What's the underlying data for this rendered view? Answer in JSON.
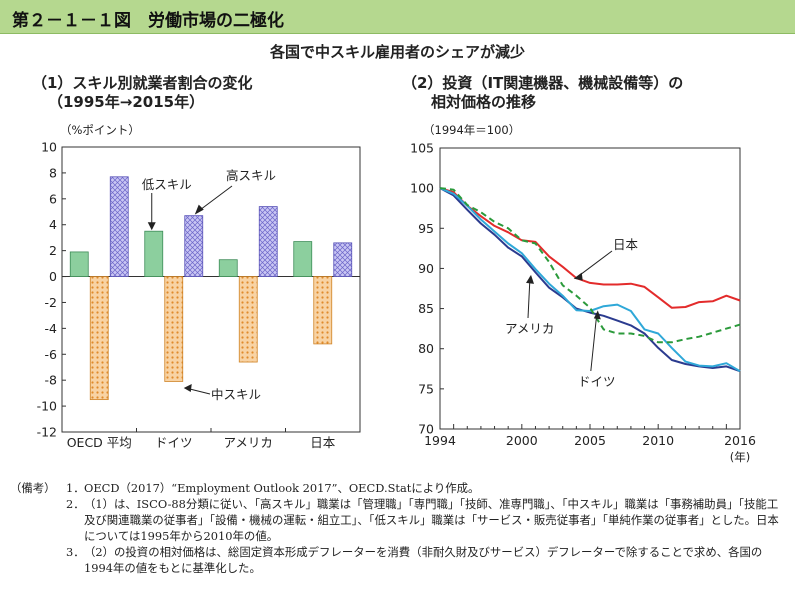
{
  "header": {
    "title": "第２－１－１図　労働市場の二極化"
  },
  "subtitle": "各国で中スキル雇用者のシェアが減少",
  "chart_data": [
    {
      "type": "bar",
      "title_line1": "（1）スキル別就業者割合の変化",
      "title_line2": "（1995年→2015年）",
      "unit_label": "（%ポイント）",
      "categories": [
        "OECD 平均",
        "ドイツ",
        "アメリカ",
        "日本"
      ],
      "ylim": [
        -12,
        10
      ],
      "yticks": [
        "10",
        "8",
        "6",
        "4",
        "2",
        "0",
        "-2",
        "-4",
        "-6",
        "-8",
        "-10",
        "-12"
      ],
      "series": [
        {
          "name": "低スキル",
          "values": [
            1.9,
            3.5,
            1.3,
            2.7
          ],
          "color": "#8ccf9e"
        },
        {
          "name": "中スキル",
          "values": [
            -9.5,
            -8.1,
            -6.6,
            -5.2
          ],
          "color": "#f7c98f"
        },
        {
          "name": "高スキル",
          "values": [
            7.7,
            4.7,
            5.4,
            2.6
          ],
          "color": "#b7b3ee"
        }
      ],
      "annotations": {
        "low": "低スキル",
        "mid": "中スキル",
        "high": "高スキル"
      }
    },
    {
      "type": "line",
      "title_line1": "（2）投資（IT関連機器、機械設備等）の",
      "title_line2": "相対価格の推移",
      "unit_label": "（1994年＝100）",
      "x_unit": "(年)",
      "ylim": [
        70,
        105
      ],
      "yticks": [
        "105",
        "100",
        "95",
        "90",
        "85",
        "80",
        "75",
        "70"
      ],
      "xlim": [
        1994,
        2016
      ],
      "xticks": [
        "1994",
        "2000",
        "2005",
        "2010",
        "2016"
      ],
      "series": [
        {
          "name": "日本",
          "color": "#e32b2b",
          "x": [
            1994,
            1995,
            1996,
            1997,
            1998,
            1999,
            2000,
            2001,
            2002,
            2003,
            2004,
            2005,
            2006,
            2007,
            2008,
            2009,
            2010,
            2011,
            2012,
            2013,
            2014,
            2015,
            2016
          ],
          "values": [
            100,
            99.5,
            97.8,
            96.5,
            95.3,
            94.5,
            93.5,
            93.3,
            91.5,
            90.2,
            88.8,
            88.2,
            88,
            88,
            88.1,
            87.7,
            86.4,
            85.1,
            85.2,
            85.8,
            85.9,
            86.6,
            86
          ]
        },
        {
          "name": "アメリカ",
          "color": "#2b3b8f",
          "x": [
            1994,
            1995,
            1996,
            1997,
            1998,
            1999,
            2000,
            2001,
            2002,
            2003,
            2004,
            2005,
            2006,
            2007,
            2008,
            2009,
            2010,
            2011,
            2012,
            2013,
            2014,
            2015,
            2016
          ],
          "values": [
            100,
            99.1,
            97.3,
            95.6,
            94.2,
            92.6,
            91.5,
            89.5,
            87.6,
            86.4,
            85,
            84.5,
            84.1,
            83.5,
            82.9,
            81.9,
            80.1,
            78.6,
            78.1,
            77.8,
            77.6,
            77.8,
            77.2
          ]
        },
        {
          "name": "ドイツ",
          "color": "#2fa8d8",
          "x": [
            1994,
            1995,
            1996,
            1997,
            1998,
            1999,
            2000,
            2001,
            2002,
            2003,
            2004,
            2005,
            2006,
            2007,
            2008,
            2009,
            2010,
            2011,
            2012,
            2013,
            2014,
            2015,
            2016
          ],
          "values": [
            100,
            99.3,
            97.8,
            96.1,
            94.6,
            93.1,
            91.9,
            89.9,
            88.1,
            86.6,
            84.8,
            84.7,
            85.3,
            85.5,
            84.7,
            82.4,
            81.9,
            80.1,
            78.4,
            77.9,
            77.8,
            78.2,
            77.2
          ]
        },
        {
          "name": "",
          "color": "#2b9a3b",
          "dashed": true,
          "x": [
            1994,
            1995,
            1996,
            1997,
            1998,
            1999,
            2000,
            2001,
            2002,
            2003,
            2004,
            2005,
            2006,
            2007,
            2008,
            2009,
            2010,
            2011,
            2012,
            2013,
            2014,
            2015,
            2016
          ],
          "values": [
            100,
            99.8,
            97.9,
            97,
            95.8,
            95,
            93.5,
            93.1,
            90.8,
            87.9,
            86.6,
            85.1,
            82.4,
            81.9,
            81.9,
            81.6,
            80.8,
            80.8,
            81.2,
            81.5,
            82,
            82.5,
            83
          ]
        }
      ],
      "annotations": {
        "japan": "日本",
        "usa": "アメリカ",
        "germany": "ドイツ"
      }
    }
  ],
  "notes": {
    "head": "（備考）",
    "items": [
      {
        "num": "1．",
        "text": "OECD（2017）“Employment Outlook 2017”、OECD.Statにより作成。"
      },
      {
        "num": "2．",
        "text": "（1）は、ISCO-88分類に従い、「高スキル」職業は「管理職」「専門職」「技師、准専門職」、「中スキル」職業は「事務補助員」「技能工及び関連職業の従事者」「設備・機械の運転・組立工」、「低スキル」職業は「サービス・販売従事者」「単純作業の従事者」とした。日本については1995年から2010年の値。"
      },
      {
        "num": "3．",
        "text": "（2）の投資の相対価格は、総固定資本形成デフレーターを消費（非耐久財及びサービス）デフレーターで除することで求め、各国の1994年の値をもとに基準化した。"
      }
    ]
  }
}
